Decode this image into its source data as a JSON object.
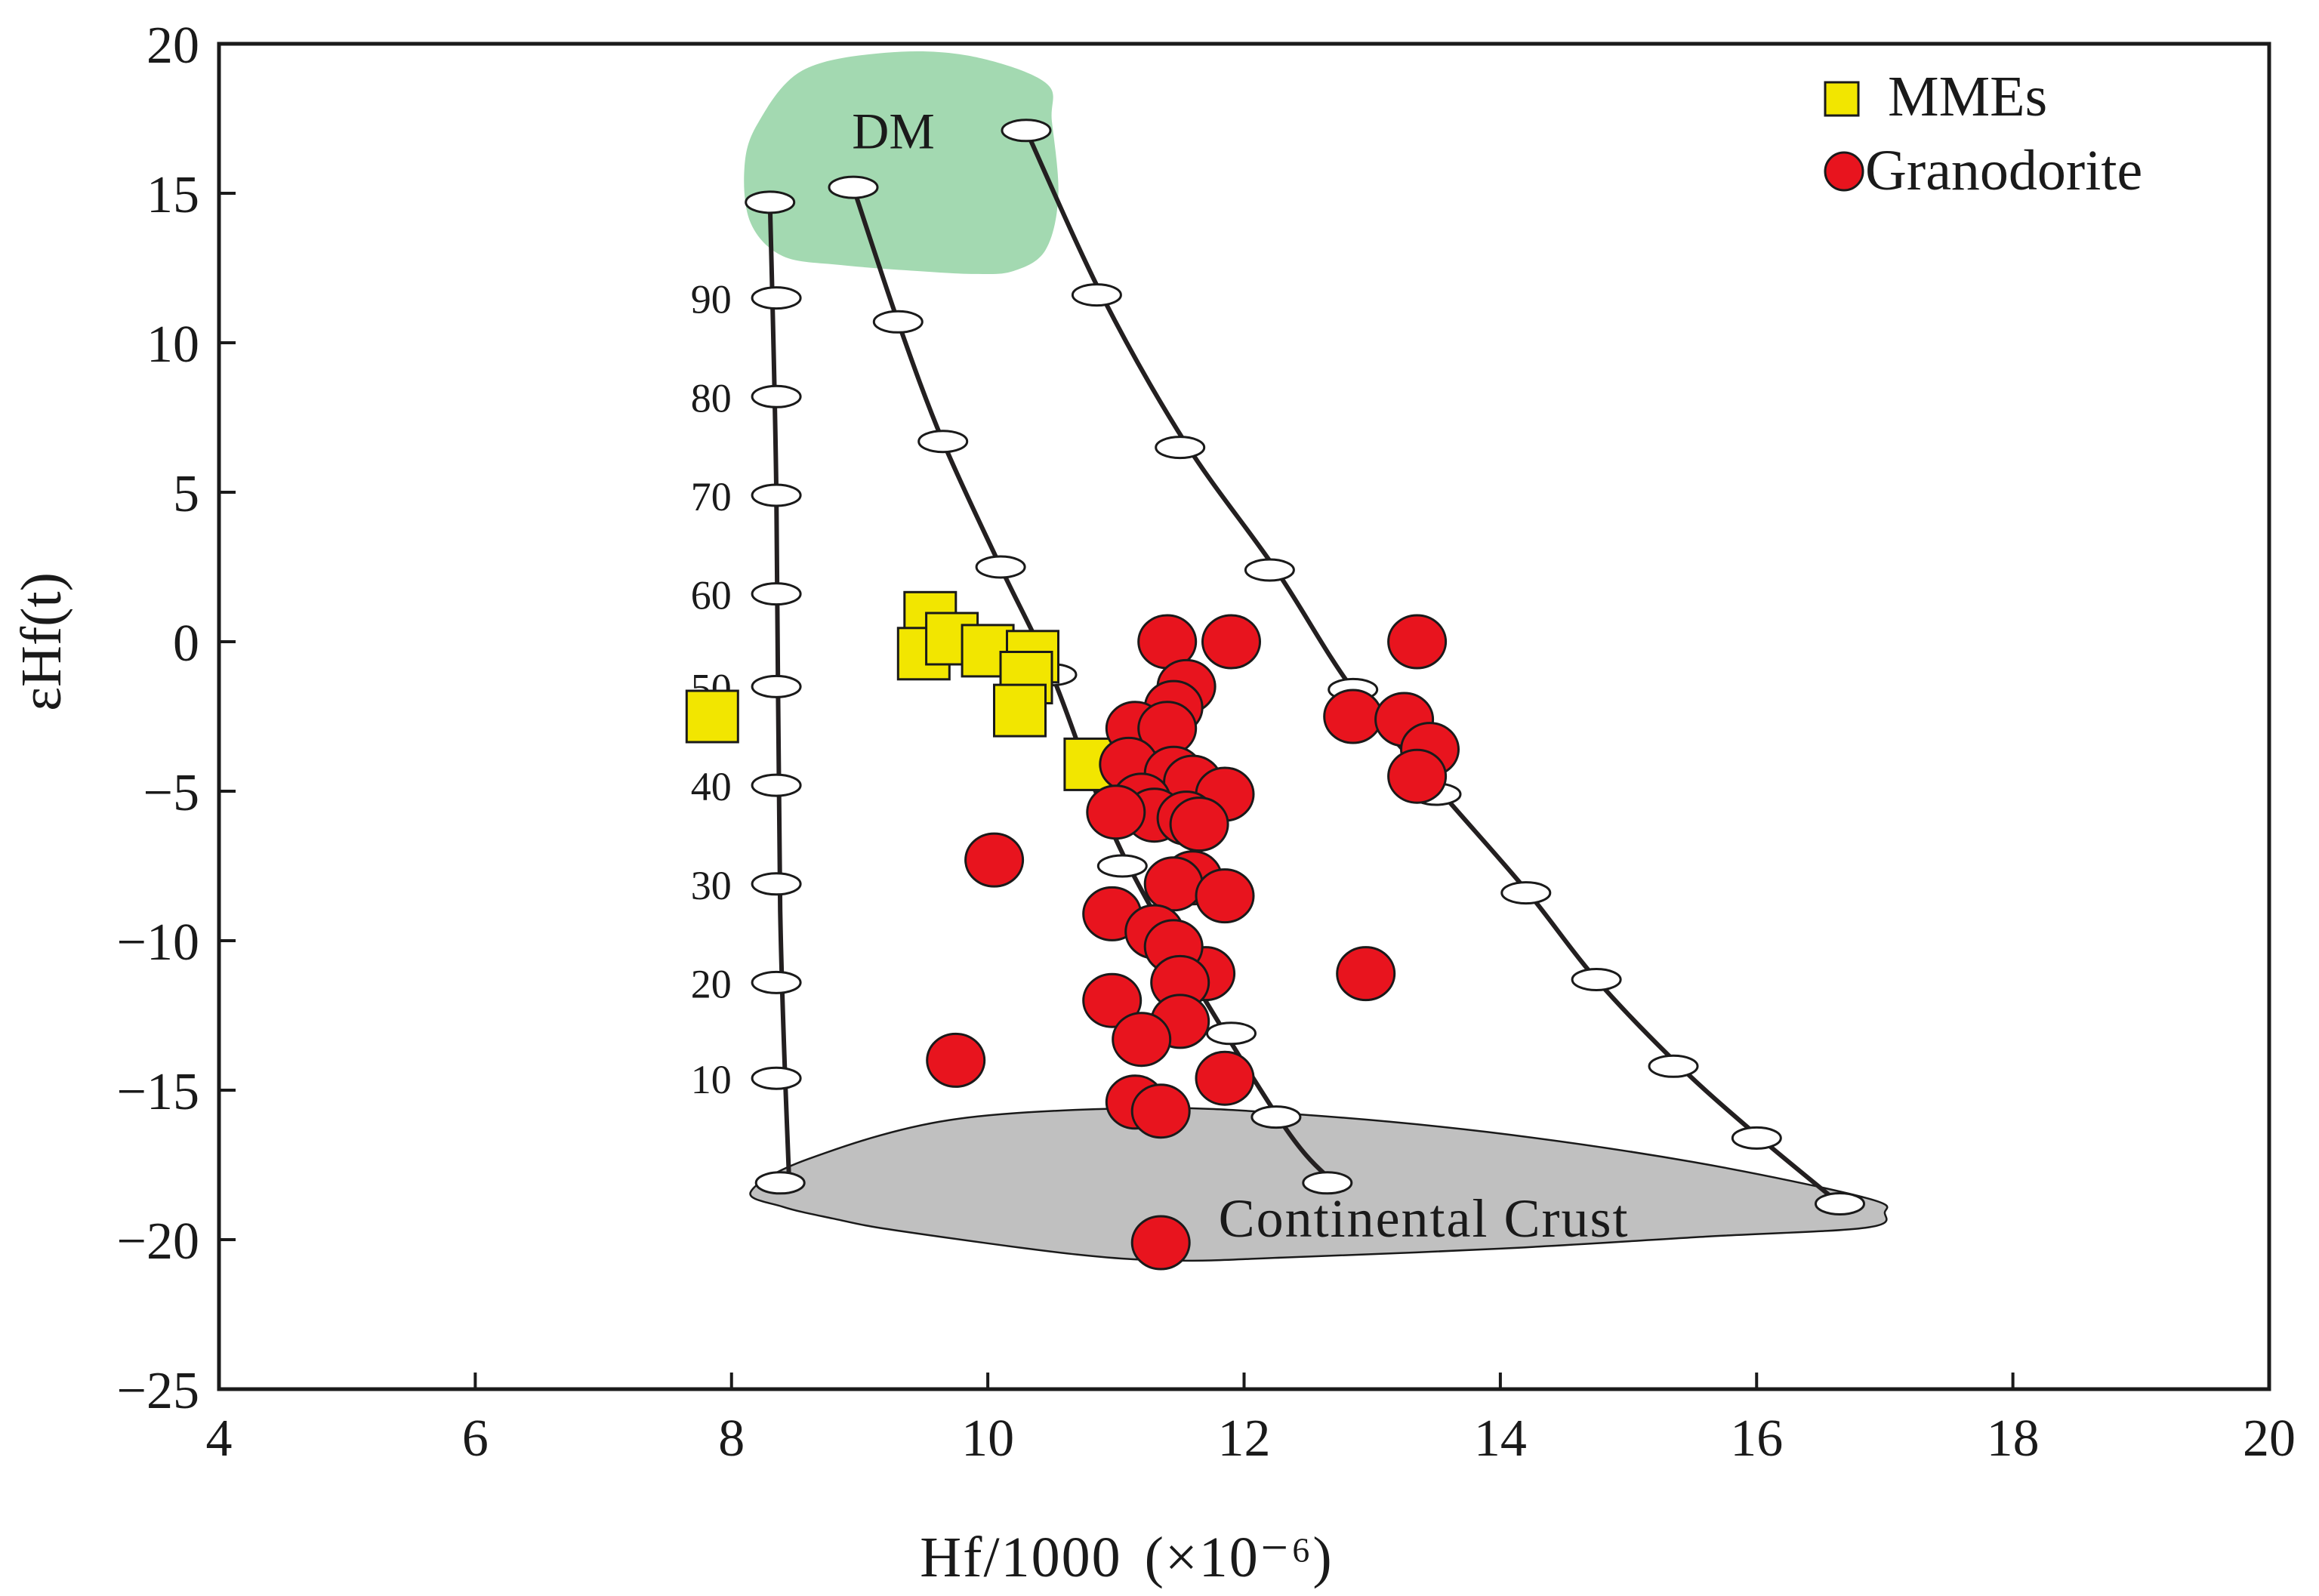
{
  "chart_data": {
    "type": "scatter",
    "title": "",
    "xlabel": "Hf/1000",
    "xlabel_unit": "(×10⁻⁶)",
    "ylabel": "εHf(t)",
    "xlim": [
      4,
      20
    ],
    "ylim": [
      -25,
      20
    ],
    "x_ticks": [
      4,
      6,
      8,
      10,
      12,
      14,
      16,
      18,
      20
    ],
    "y_ticks": [
      20,
      15,
      10,
      5,
      0,
      -5,
      -10,
      -15,
      -20,
      -25
    ],
    "x_tick_labels": [
      "4",
      "6",
      "8",
      "10",
      "12",
      "14",
      "16",
      "18",
      "20"
    ],
    "y_tick_labels": [
      "20",
      "15",
      "10",
      "5",
      "0",
      "−5",
      "−10",
      "−15",
      "−20",
      "−25"
    ],
    "grid": false,
    "legend": {
      "position": "top-right",
      "entries": [
        {
          "label": "MMEs",
          "marker": "square",
          "color": "#f2e600"
        },
        {
          "label": "Granodorite",
          "marker": "circle",
          "color": "#e8141e"
        }
      ]
    },
    "series": [
      {
        "name": "MMEs",
        "marker": "square",
        "color": "#f2e600",
        "points": [
          [
            7.85,
            -2.5
          ],
          [
            9.55,
            0.8
          ],
          [
            9.5,
            -0.4
          ],
          [
            9.72,
            0.1
          ],
          [
            10.0,
            -0.3
          ],
          [
            10.35,
            -0.5
          ],
          [
            10.3,
            -1.2
          ],
          [
            10.25,
            -2.3
          ],
          [
            10.8,
            -4.1
          ]
        ]
      },
      {
        "name": "Granodorite",
        "marker": "circle",
        "color": "#e8141e",
        "points": [
          [
            11.4,
            0.0
          ],
          [
            11.9,
            0.0
          ],
          [
            13.35,
            0.0
          ],
          [
            11.55,
            -1.5
          ],
          [
            11.45,
            -2.2
          ],
          [
            11.15,
            -2.9
          ],
          [
            11.4,
            -2.9
          ],
          [
            12.85,
            -2.5
          ],
          [
            13.25,
            -2.6
          ],
          [
            13.45,
            -3.6
          ],
          [
            13.35,
            -4.5
          ],
          [
            11.1,
            -4.1
          ],
          [
            11.45,
            -4.4
          ],
          [
            11.6,
            -4.7
          ],
          [
            11.85,
            -5.1
          ],
          [
            11.2,
            -5.3
          ],
          [
            11.3,
            -5.8
          ],
          [
            11.0,
            -5.7
          ],
          [
            11.55,
            -5.9
          ],
          [
            11.65,
            -6.1
          ],
          [
            10.05,
            -7.3
          ],
          [
            11.6,
            -7.9
          ],
          [
            11.45,
            -8.1
          ],
          [
            11.85,
            -8.5
          ],
          [
            10.97,
            -9.1
          ],
          [
            11.3,
            -9.7
          ],
          [
            11.7,
            -11.1
          ],
          [
            11.45,
            -10.2
          ],
          [
            11.5,
            -11.4
          ],
          [
            12.95,
            -11.1
          ],
          [
            10.97,
            -12.0
          ],
          [
            11.5,
            -12.7
          ],
          [
            11.2,
            -13.3
          ],
          [
            9.75,
            -14.0
          ],
          [
            11.85,
            -14.6
          ],
          [
            11.15,
            -15.4
          ],
          [
            11.35,
            -15.7
          ],
          [
            11.35,
            -20.1
          ]
        ]
      }
    ],
    "mixing_curves": [
      {
        "name": "left",
        "points": [
          [
            8.3,
            14.7
          ],
          [
            8.35,
            5.0
          ],
          [
            8.38,
            -9.0
          ],
          [
            8.45,
            -18.1
          ]
        ],
        "tick_points": [
          [
            8.3,
            14.7
          ],
          [
            8.35,
            11.5
          ],
          [
            8.35,
            8.2
          ],
          [
            8.35,
            4.9
          ],
          [
            8.35,
            1.6
          ],
          [
            8.35,
            -1.5
          ],
          [
            8.35,
            -4.8
          ],
          [
            8.35,
            -8.1
          ],
          [
            8.35,
            -11.4
          ],
          [
            8.35,
            -14.6
          ],
          [
            8.38,
            -18.1
          ]
        ]
      },
      {
        "name": "middle",
        "points": [
          [
            8.95,
            15.2
          ],
          [
            9.3,
            10.7
          ],
          [
            9.65,
            6.7
          ],
          [
            10.1,
            2.5
          ],
          [
            10.5,
            -1.1
          ],
          [
            11.1,
            -7.5
          ],
          [
            12.25,
            -15.8
          ],
          [
            12.7,
            -18.1
          ]
        ],
        "tick_points": [
          [
            8.95,
            15.2
          ],
          [
            9.3,
            10.7
          ],
          [
            9.65,
            6.7
          ],
          [
            10.1,
            2.5
          ],
          [
            10.5,
            -1.1
          ],
          [
            11.05,
            -7.5
          ],
          [
            11.9,
            -13.1
          ],
          [
            12.25,
            -15.9
          ],
          [
            12.65,
            -18.1
          ]
        ]
      },
      {
        "name": "right",
        "points": [
          [
            10.3,
            17.1
          ],
          [
            10.9,
            11.5
          ],
          [
            11.55,
            6.6
          ],
          [
            12.25,
            2.4
          ],
          [
            12.85,
            -1.6
          ],
          [
            13.55,
            -5.1
          ],
          [
            14.2,
            -8.3
          ],
          [
            14.75,
            -11.3
          ],
          [
            15.4,
            -14.2
          ],
          [
            16.0,
            -16.5
          ],
          [
            16.65,
            -18.8
          ]
        ],
        "tick_points": [
          [
            10.3,
            17.1
          ],
          [
            10.85,
            11.6
          ],
          [
            11.5,
            6.5
          ],
          [
            12.2,
            2.4
          ],
          [
            12.85,
            -1.6
          ],
          [
            13.5,
            -5.1
          ],
          [
            14.2,
            -8.4
          ],
          [
            14.75,
            -11.3
          ],
          [
            15.35,
            -14.2
          ],
          [
            16.0,
            -16.6
          ],
          [
            16.65,
            -18.8
          ]
        ]
      }
    ],
    "mixing_tick_labels": [
      "90",
      "80",
      "70",
      "60",
      "50",
      "40",
      "30",
      "20",
      "10"
    ],
    "mixing_tick_label_values": [
      11.5,
      8.2,
      4.9,
      1.6,
      -1.5,
      -4.8,
      -8.1,
      -11.4,
      -14.6
    ],
    "fields": [
      {
        "name": "DM",
        "label": "DM",
        "color": "#a3d9b1",
        "points": [
          [
            8.1,
            15.8
          ],
          [
            8.2,
            17.3
          ],
          [
            8.55,
            19.1
          ],
          [
            9.2,
            19.7
          ],
          [
            9.85,
            19.6
          ],
          [
            10.45,
            18.7
          ],
          [
            10.5,
            17.4
          ],
          [
            10.55,
            14.9
          ],
          [
            10.45,
            13.1
          ],
          [
            10.2,
            12.4
          ],
          [
            9.9,
            12.3
          ],
          [
            9.45,
            12.4
          ],
          [
            8.85,
            12.6
          ],
          [
            8.4,
            12.9
          ],
          [
            8.15,
            14.0
          ]
        ]
      },
      {
        "name": "Continental Crust",
        "label": "Continental Crust",
        "color": "#c0c0c0",
        "points": [
          [
            8.15,
            -18.4
          ],
          [
            8.6,
            -17.3
          ],
          [
            9.7,
            -16.0
          ],
          [
            11.2,
            -15.6
          ],
          [
            12.4,
            -15.8
          ],
          [
            13.9,
            -16.4
          ],
          [
            15.5,
            -17.4
          ],
          [
            16.85,
            -18.6
          ],
          [
            17.0,
            -19.1
          ],
          [
            16.85,
            -19.6
          ],
          [
            15.6,
            -19.9
          ],
          [
            14.0,
            -20.3
          ],
          [
            12.3,
            -20.6
          ],
          [
            11.5,
            -20.7
          ],
          [
            10.7,
            -20.5
          ],
          [
            9.3,
            -19.7
          ],
          [
            8.8,
            -19.3
          ],
          [
            8.4,
            -18.9
          ]
        ]
      }
    ]
  }
}
